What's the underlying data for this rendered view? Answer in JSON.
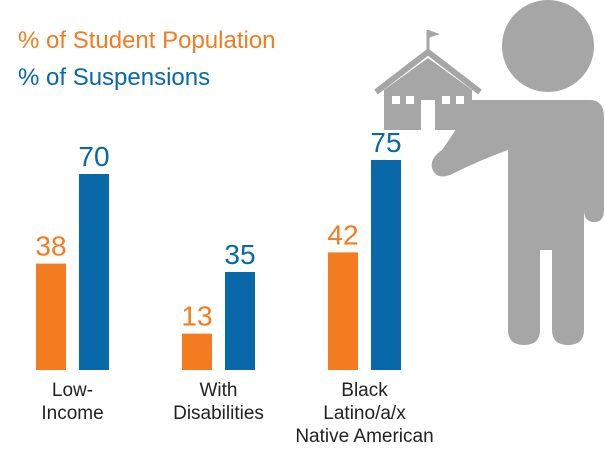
{
  "chart_data": {
    "type": "bar",
    "categories": [
      [
        "Low-",
        "Income"
      ],
      [
        "With",
        "Disabilities"
      ],
      [
        "Black",
        "Latino/a/x",
        "Native American"
      ]
    ],
    "series": [
      {
        "name": "% of Student Population",
        "color": "#f47c20",
        "values": [
          38,
          13,
          42
        ]
      },
      {
        "name": "% of Suspensions",
        "color": "#0868a8",
        "values": [
          70,
          35,
          75
        ]
      }
    ]
  }
}
